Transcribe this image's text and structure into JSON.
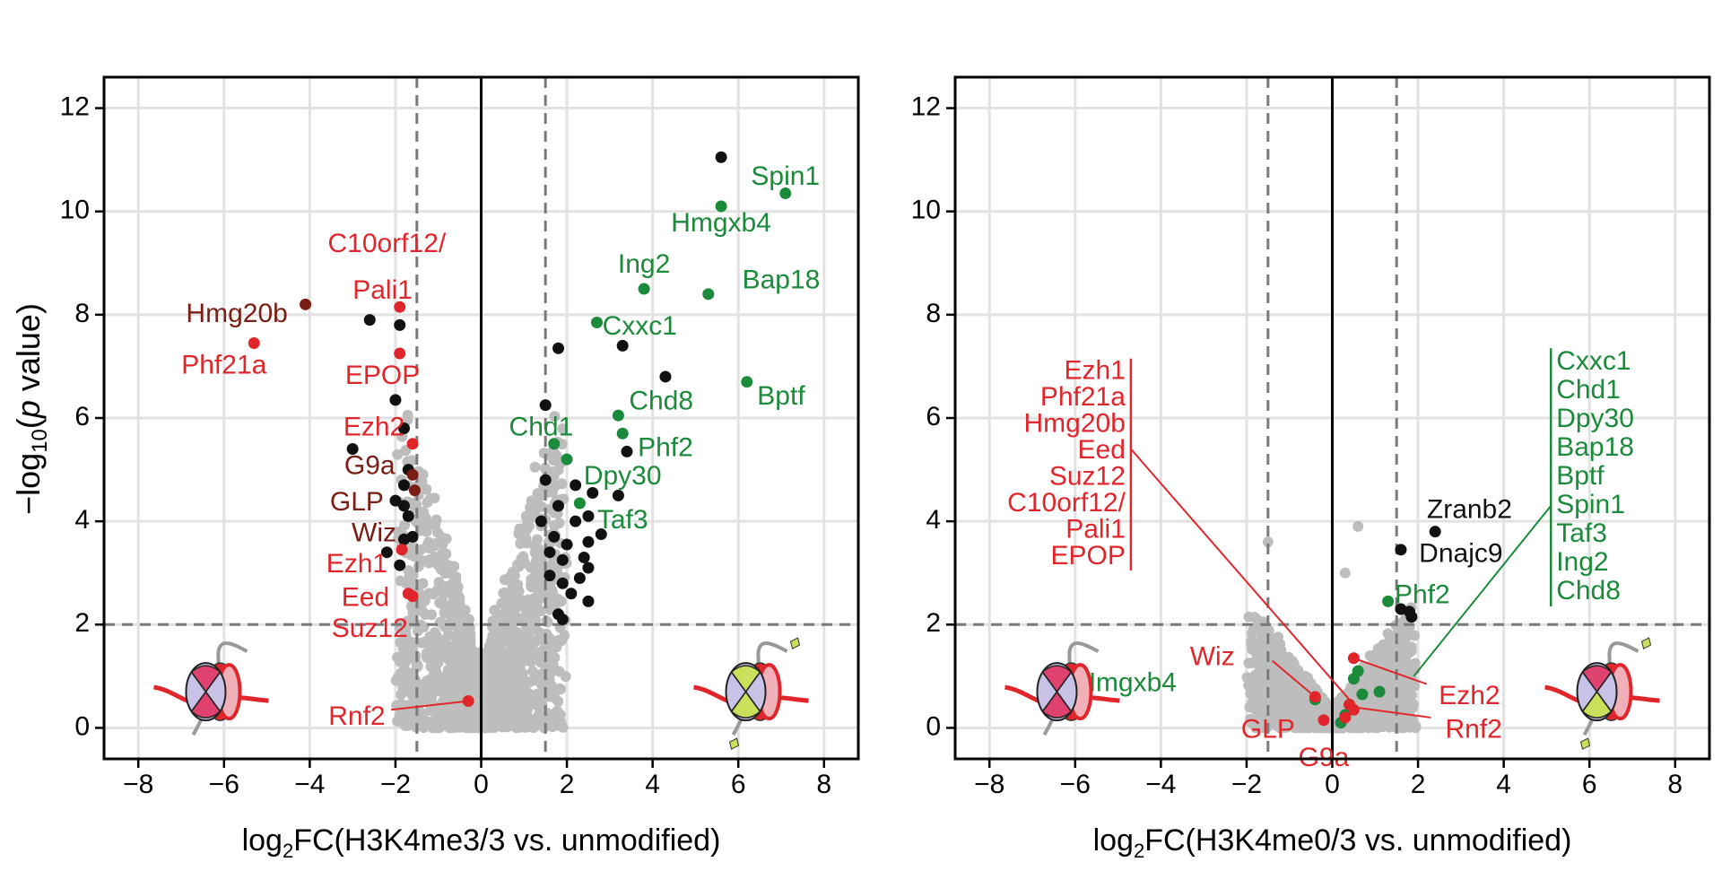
{
  "colors": {
    "grey": "#bdbdbd",
    "black": "#111111",
    "green": "#1b8a3a",
    "red": "#e1262b",
    "darkred": "#7a1d14",
    "grid": "#e2e2e2",
    "dash": "#7a7a7a",
    "nucleosome_fill": "#c8c3e6",
    "nucleosome_pink": "#e0426f",
    "lime": "#c8e05a"
  },
  "chart_data": [
    {
      "type": "scatter",
      "title": "",
      "xlabel_prefix": "log",
      "xlabel_sub": "2",
      "xlabel_rest": "FC(H3K4me3/3 vs. unmodified)",
      "ylabel_pre": "−log",
      "ylabel_sub": "10",
      "ylabel_paren_open": "(",
      "ylabel_italic": "p",
      "ylabel_post": " value)",
      "xlim": [
        -8.8,
        8.8
      ],
      "ylim": [
        -0.6,
        12.6
      ],
      "xticks": [
        "−8",
        "−6",
        "−4",
        "−2",
        "0",
        "2",
        "4",
        "6",
        "8"
      ],
      "xtick_values": [
        -8,
        -6,
        -4,
        -2,
        0,
        2,
        4,
        6,
        8
      ],
      "yticks": [
        "0",
        "2",
        "4",
        "6",
        "8",
        "10",
        "12"
      ],
      "ytick_values": [
        0,
        2,
        4,
        6,
        8,
        10,
        12
      ],
      "thresholds": {
        "x": [
          -1.5,
          1.5
        ],
        "y": 2
      },
      "grey_seed": 11,
      "green_points": [
        [
          5.6,
          10.1
        ],
        [
          7.1,
          10.35
        ],
        [
          3.8,
          8.5
        ],
        [
          5.3,
          8.4
        ],
        [
          2.7,
          7.85
        ],
        [
          6.2,
          6.7
        ],
        [
          3.2,
          6.05
        ],
        [
          3.3,
          5.7
        ],
        [
          1.7,
          5.5
        ],
        [
          2.0,
          5.2
        ],
        [
          2.3,
          4.35
        ]
      ],
      "black_points": [
        [
          5.6,
          11.05
        ],
        [
          3.3,
          7.4
        ],
        [
          1.8,
          7.35
        ],
        [
          4.3,
          6.8
        ],
        [
          1.5,
          6.25
        ],
        [
          3.4,
          5.35
        ],
        [
          1.5,
          4.8
        ],
        [
          2.2,
          4.7
        ],
        [
          2.6,
          4.55
        ],
        [
          3.2,
          4.5
        ],
        [
          1.8,
          4.3
        ],
        [
          2.5,
          4.1
        ],
        [
          1.4,
          4.0
        ],
        [
          2.2,
          4.0
        ],
        [
          1.7,
          3.7
        ],
        [
          2.8,
          3.75
        ],
        [
          2.5,
          3.6
        ],
        [
          2.0,
          3.55
        ],
        [
          1.6,
          3.4
        ],
        [
          2.4,
          3.3
        ],
        [
          1.9,
          3.25
        ],
        [
          2.5,
          3.1
        ],
        [
          1.6,
          2.95
        ],
        [
          2.3,
          2.9
        ],
        [
          1.9,
          2.8
        ],
        [
          2.1,
          2.6
        ],
        [
          2.5,
          2.45
        ],
        [
          1.8,
          2.2
        ],
        [
          1.9,
          2.1
        ],
        [
          -2.6,
          7.9
        ],
        [
          -1.9,
          7.8
        ],
        [
          -2.0,
          6.35
        ],
        [
          -1.8,
          5.8
        ],
        [
          -3.0,
          5.4
        ],
        [
          -1.7,
          5.0
        ],
        [
          -1.8,
          4.7
        ],
        [
          -2.0,
          4.4
        ],
        [
          -1.8,
          4.3
        ],
        [
          -1.7,
          4.1
        ],
        [
          -1.6,
          3.7
        ],
        [
          -1.8,
          3.65
        ],
        [
          -2.2,
          3.4
        ],
        [
          -1.9,
          3.15
        ]
      ],
      "red_points": [
        [
          -5.3,
          7.45
        ],
        [
          -1.9,
          8.15
        ],
        [
          -1.9,
          7.25
        ],
        [
          -1.6,
          5.5
        ],
        [
          -1.85,
          3.45
        ],
        [
          -1.7,
          2.6
        ],
        [
          -1.6,
          2.55
        ],
        [
          -0.3,
          0.52
        ]
      ],
      "darkred_points": [
        [
          -4.1,
          8.2
        ],
        [
          -1.6,
          4.9
        ],
        [
          -1.55,
          4.6
        ]
      ],
      "labels": [
        {
          "text": "Spin1",
          "color": "green",
          "x": 7.1,
          "y": 10.65
        },
        {
          "text": "Hmgxb4",
          "color": "green",
          "x": 5.6,
          "y": 9.75
        },
        {
          "text": "Ing2",
          "color": "green",
          "x": 3.8,
          "y": 8.95
        },
        {
          "text": "Bap18",
          "color": "green",
          "x": 7.0,
          "y": 8.65
        },
        {
          "text": "Cxxc1",
          "color": "green",
          "x": 3.7,
          "y": 7.75
        },
        {
          "text": "Chd8",
          "color": "green",
          "x": 4.2,
          "y": 6.3
        },
        {
          "text": "Bptf",
          "color": "green",
          "x": 7.0,
          "y": 6.4
        },
        {
          "text": "Chd1",
          "color": "green",
          "x": 1.4,
          "y": 5.8
        },
        {
          "text": "Phf2",
          "color": "green",
          "x": 4.3,
          "y": 5.4
        },
        {
          "text": "Dpy30",
          "color": "green",
          "x": 3.3,
          "y": 4.85
        },
        {
          "text": "Taf3",
          "color": "green",
          "x": 3.3,
          "y": 4.0
        },
        {
          "text": "C10orf12/",
          "color": "red",
          "x": -2.2,
          "y": 9.35
        },
        {
          "text": "Pali1",
          "color": "red",
          "x": -2.3,
          "y": 8.45
        },
        {
          "text": "Hmg20b",
          "color": "darkred",
          "x": -5.7,
          "y": 8.0
        },
        {
          "text": "Phf21a",
          "color": "red",
          "x": -6.0,
          "y": 7.0
        },
        {
          "text": "EPOP",
          "color": "red",
          "x": -2.3,
          "y": 6.8
        },
        {
          "text": "Ezh2",
          "color": "red",
          "x": -2.5,
          "y": 5.8
        },
        {
          "text": "G9a",
          "color": "darkred",
          "x": -2.6,
          "y": 5.05
        },
        {
          "text": "GLP",
          "color": "darkred",
          "x": -2.9,
          "y": 4.35
        },
        {
          "text": "Wiz",
          "color": "darkred",
          "x": -2.5,
          "y": 3.75
        },
        {
          "text": "Ezh1",
          "color": "red",
          "x": -2.9,
          "y": 3.15
        },
        {
          "text": "Eed",
          "color": "red",
          "x": -2.7,
          "y": 2.5
        },
        {
          "text": "Suz12",
          "color": "red",
          "x": -2.6,
          "y": 1.9
        },
        {
          "text": "Rnf2",
          "color": "red",
          "x": -2.9,
          "y": 0.2
        }
      ],
      "connectors": [
        {
          "color": "red",
          "from": [
            -2.1,
            0.35
          ],
          "to": [
            -0.3,
            0.52
          ]
        }
      ],
      "brackets": [],
      "nucleosome_left": "pink",
      "nucleosome_right": "lime"
    },
    {
      "type": "scatter",
      "title": "",
      "xlabel_prefix": "log",
      "xlabel_sub": "2",
      "xlabel_rest": "FC(H3K4me0/3 vs. unmodified)",
      "xlim": [
        -8.8,
        8.8
      ],
      "ylim": [
        -0.6,
        12.6
      ],
      "xticks": [
        "−8",
        "−6",
        "−4",
        "−2",
        "0",
        "2",
        "4",
        "6",
        "8"
      ],
      "xtick_values": [
        -8,
        -6,
        -4,
        -2,
        0,
        2,
        4,
        6,
        8
      ],
      "yticks": [
        "0",
        "2",
        "4",
        "6",
        "8",
        "10",
        "12"
      ],
      "ytick_values": [
        0,
        2,
        4,
        6,
        8,
        10,
        12
      ],
      "thresholds": {
        "x": [
          -1.5,
          1.5
        ],
        "y": 2
      },
      "grey_seed": 29,
      "green_points": [
        [
          1.3,
          2.45
        ],
        [
          0.6,
          1.1
        ],
        [
          0.5,
          0.95
        ],
        [
          1.1,
          0.7
        ],
        [
          0.7,
          0.65
        ],
        [
          0.4,
          0.45
        ],
        [
          0.3,
          0.25
        ],
        [
          0.2,
          0.1
        ],
        [
          -0.4,
          0.55
        ]
      ],
      "black_points": [
        [
          2.4,
          3.8
        ],
        [
          1.6,
          3.45
        ],
        [
          1.6,
          2.3
        ],
        [
          1.8,
          2.25
        ],
        [
          1.85,
          2.15
        ]
      ],
      "red_points": [
        [
          -0.4,
          0.6
        ],
        [
          0.5,
          1.35
        ],
        [
          0.4,
          0.45
        ],
        [
          0.5,
          0.35
        ],
        [
          0.3,
          0.2
        ],
        [
          -0.2,
          0.15
        ]
      ],
      "darkred_points": [],
      "labels": [
        {
          "text": "Zranb2",
          "color": "black",
          "x": 3.2,
          "y": 4.2
        },
        {
          "text": "Dnajc9",
          "color": "black",
          "x": 3.0,
          "y": 3.35
        },
        {
          "text": "Phf2",
          "color": "green",
          "x": 2.1,
          "y": 2.55
        },
        {
          "text": "Wiz",
          "color": "red",
          "x": -2.8,
          "y": 1.35
        },
        {
          "text": "Hmgxb4",
          "color": "green",
          "x": -4.8,
          "y": 0.85
        },
        {
          "text": "GLP",
          "color": "red",
          "x": -1.5,
          "y": -0.05
        },
        {
          "text": "G9a",
          "color": "red",
          "x": -0.2,
          "y": -0.6
        },
        {
          "text": "Ezh2",
          "color": "red",
          "x": 3.2,
          "y": 0.6
        },
        {
          "text": "Rnf2",
          "color": "red",
          "x": 3.3,
          "y": -0.05
        }
      ],
      "connectors": [
        {
          "color": "red",
          "from": [
            -4.7,
            5.4
          ],
          "to": [
            0.5,
            0.45
          ]
        },
        {
          "color": "green",
          "from": [
            5.1,
            4.3
          ],
          "to": [
            1.9,
            1.0
          ]
        },
        {
          "color": "red",
          "from": [
            -1.4,
            1.3
          ],
          "to": [
            -0.4,
            0.6
          ]
        },
        {
          "color": "red",
          "from": [
            2.2,
            0.85
          ],
          "to": [
            0.5,
            1.35
          ]
        },
        {
          "color": "red",
          "from": [
            2.3,
            0.2
          ],
          "to": [
            0.5,
            0.4
          ]
        }
      ],
      "brackets": [
        {
          "color": "red",
          "side": "left",
          "x": -4.7,
          "y_top": 7.15,
          "y_bottom": 3.05,
          "items": [
            "Ezh1",
            "Phf21a",
            "Hmg20b",
            "Eed",
            "Suz12",
            "C10orf12/",
            "Pali1",
            "EPOP"
          ]
        },
        {
          "color": "green",
          "side": "right",
          "x": 5.1,
          "y_top": 7.35,
          "y_bottom": 2.35,
          "items": [
            "Cxxc1",
            "Chd1",
            "Dpy30",
            "Bap18",
            "Bptf",
            "Spin1",
            "Taf3",
            "Ing2",
            "Chd8"
          ]
        }
      ],
      "nucleosome_left": "pink",
      "nucleosome_right": "pink-lime"
    }
  ]
}
